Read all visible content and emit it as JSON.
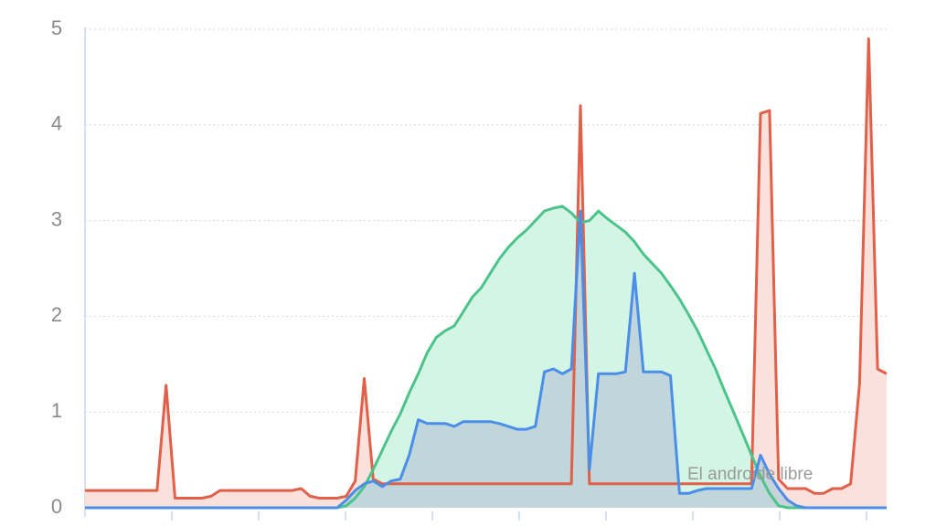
{
  "chart_data": {
    "type": "area",
    "watermark": "El androide libre",
    "ylim": [
      0,
      5
    ],
    "yticks": [
      0,
      1,
      2,
      3,
      4,
      5
    ],
    "grid": true,
    "series": [
      {
        "color": "#e0604a",
        "fill": "#fbe1dc",
        "values": [
          0.18,
          0.18,
          0.18,
          0.18,
          0.18,
          0.18,
          0.18,
          0.18,
          0.18,
          1.28,
          0.1,
          0.1,
          0.1,
          0.1,
          0.12,
          0.18,
          0.18,
          0.18,
          0.18,
          0.18,
          0.18,
          0.18,
          0.18,
          0.18,
          0.2,
          0.12,
          0.1,
          0.1,
          0.1,
          0.12,
          0.28,
          1.35,
          0.3,
          0.25,
          0.25,
          0.25,
          0.25,
          0.25,
          0.25,
          0.25,
          0.25,
          0.25,
          0.25,
          0.25,
          0.25,
          0.25,
          0.25,
          0.25,
          0.25,
          0.25,
          0.25,
          0.25,
          0.25,
          0.25,
          0.25,
          4.2,
          0.25,
          0.25,
          0.25,
          0.25,
          0.25,
          0.25,
          0.25,
          0.25,
          0.25,
          0.25,
          0.25,
          0.25,
          0.25,
          0.25,
          0.25,
          0.25,
          0.25,
          0.25,
          0.25,
          4.12,
          4.15,
          0.3,
          0.2,
          0.2,
          0.2,
          0.15,
          0.15,
          0.2,
          0.2,
          0.25,
          1.3,
          4.9,
          1.45,
          1.4
        ]
      },
      {
        "color": "#4cc38a",
        "fill": "#d3f5e5",
        "values": [
          0,
          0,
          0,
          0,
          0,
          0,
          0,
          0,
          0,
          0,
          0,
          0,
          0,
          0,
          0,
          0,
          0,
          0,
          0,
          0,
          0,
          0,
          0,
          0,
          0,
          0,
          0,
          0,
          0,
          0.02,
          0.1,
          0.22,
          0.4,
          0.6,
          0.8,
          0.98,
          1.2,
          1.4,
          1.62,
          1.78,
          1.85,
          1.9,
          2.05,
          2.2,
          2.3,
          2.45,
          2.6,
          2.72,
          2.82,
          2.9,
          3.0,
          3.1,
          3.13,
          3.15,
          3.08,
          2.98,
          3.0,
          3.1,
          3.02,
          2.95,
          2.88,
          2.78,
          2.65,
          2.55,
          2.45,
          2.32,
          2.18,
          2.02,
          1.85,
          1.65,
          1.45,
          1.22,
          1.0,
          0.78,
          0.55,
          0.33,
          0.15,
          0.02,
          0,
          0,
          0,
          0,
          0,
          0,
          0,
          0,
          0,
          0,
          0,
          0
        ]
      },
      {
        "color": "#4a8ee8",
        "fill": "#bcd0d9",
        "values": [
          0,
          0,
          0,
          0,
          0,
          0,
          0,
          0,
          0,
          0,
          0,
          0,
          0,
          0,
          0,
          0,
          0,
          0,
          0,
          0,
          0,
          0,
          0,
          0,
          0,
          0,
          0,
          0,
          0,
          0.08,
          0.18,
          0.25,
          0.28,
          0.22,
          0.28,
          0.3,
          0.55,
          0.92,
          0.88,
          0.88,
          0.88,
          0.85,
          0.9,
          0.9,
          0.9,
          0.9,
          0.88,
          0.85,
          0.82,
          0.82,
          0.85,
          1.42,
          1.45,
          1.4,
          1.45,
          3.1,
          0.4,
          1.4,
          1.4,
          1.4,
          1.42,
          2.45,
          1.42,
          1.42,
          1.42,
          1.38,
          0.15,
          0.15,
          0.18,
          0.2,
          0.2,
          0.2,
          0.2,
          0.2,
          0.2,
          0.55,
          0.35,
          0.2,
          0.08,
          0.02,
          0,
          0,
          0,
          0,
          0,
          0,
          0,
          0,
          0,
          0
        ]
      }
    ]
  }
}
